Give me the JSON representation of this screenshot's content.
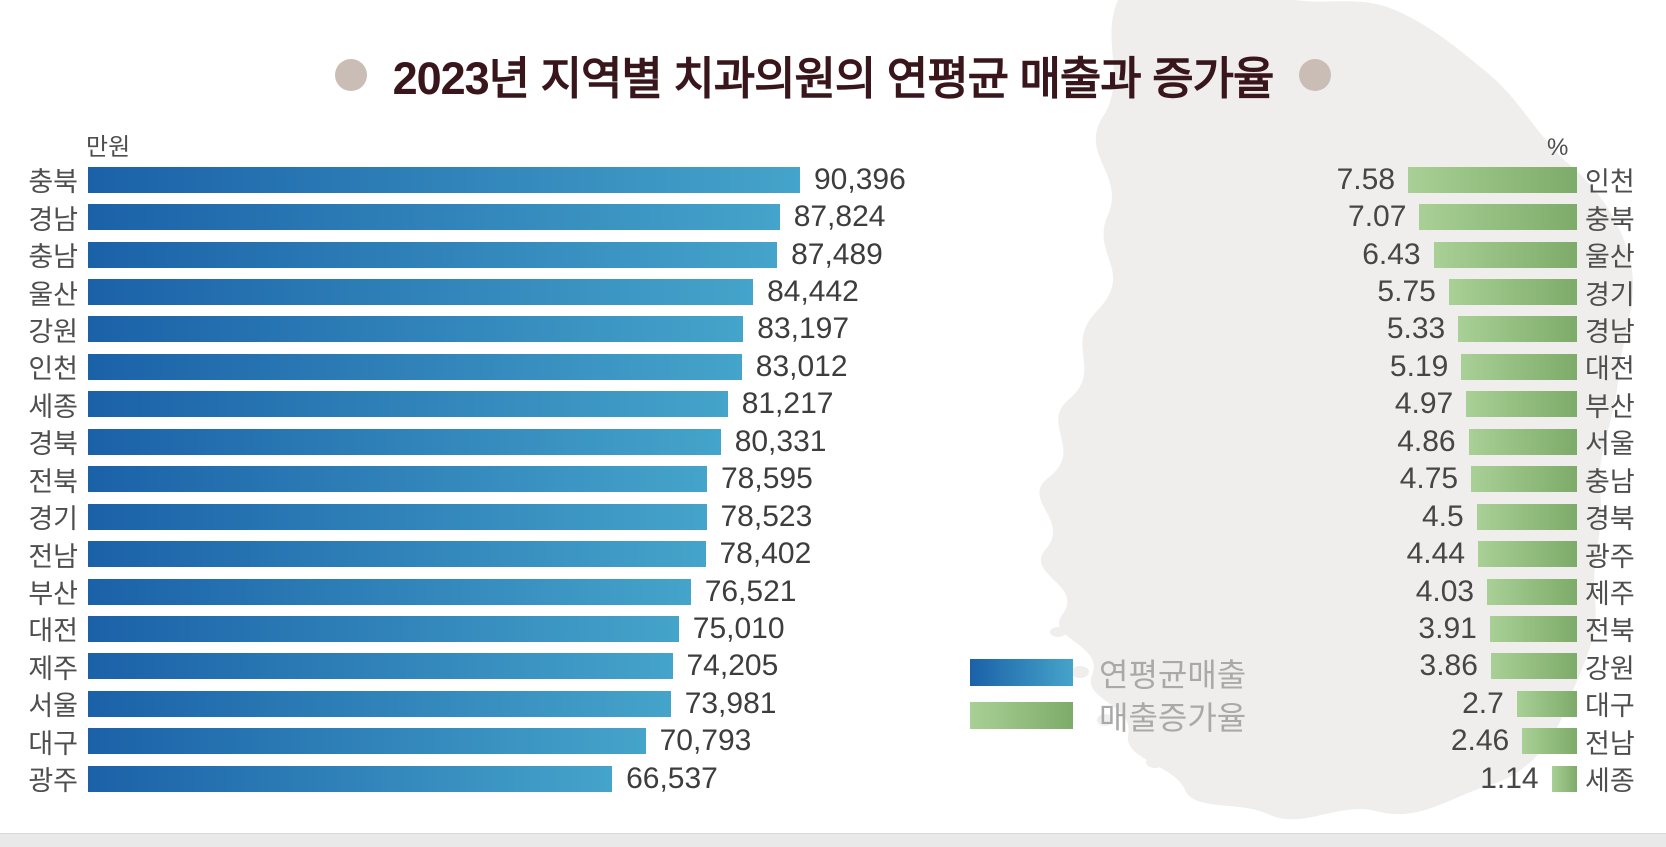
{
  "page": {
    "title": "2023년 지역별 치과의원의 연평균 매출과 증가율"
  },
  "legend": {
    "items": [
      {
        "label": "연평균매출",
        "color_start": "#1b61a8",
        "color_end": "#45a4ca"
      },
      {
        "label": "매출증가율",
        "color_start": "#a9d096",
        "color_end": "#7dab69"
      }
    ]
  },
  "colors": {
    "title_text": "#38161b",
    "title_dot": "#c9bdb6",
    "sales_bar_start": "#1b61a8",
    "sales_bar_end": "#45a4ca",
    "growth_bar_start": "#a9d096",
    "growth_bar_end": "#7dab69",
    "map_silhouette": "#efeeed",
    "value_text": "#3d3d3d",
    "category_text": "#4e4e4e",
    "legend_text": "#a9a9a9"
  },
  "chart_data": [
    {
      "type": "bar",
      "orientation": "horizontal-left-anchored",
      "name": "연평균매출",
      "unit": "만원",
      "categories": [
        "충북",
        "경남",
        "충남",
        "울산",
        "강원",
        "인천",
        "세종",
        "경북",
        "전북",
        "경기",
        "전남",
        "부산",
        "대전",
        "제주",
        "서울",
        "대구",
        "광주"
      ],
      "values": [
        90396,
        87824,
        87489,
        84442,
        83197,
        83012,
        81217,
        80331,
        78595,
        78523,
        78402,
        76521,
        75010,
        74205,
        73981,
        70793,
        66537
      ],
      "value_labels": [
        "90,396",
        "87,824",
        "87,489",
        "84,442",
        "83,197",
        "83,012",
        "81,217",
        "80,331",
        "78,595",
        "78,523",
        "78,402",
        "76,521",
        "75,010",
        "74,205",
        "73,981",
        "70,793",
        "66,537"
      ],
      "xlim": [
        0,
        90396
      ],
      "grid": false,
      "legend_position": "center-bottom"
    },
    {
      "type": "bar",
      "orientation": "horizontal-right-anchored",
      "name": "매출증가율",
      "unit": "%",
      "categories": [
        "인천",
        "충북",
        "울산",
        "경기",
        "경남",
        "대전",
        "부산",
        "서울",
        "충남",
        "경북",
        "광주",
        "제주",
        "전북",
        "강원",
        "대구",
        "전남",
        "세종"
      ],
      "values": [
        7.58,
        7.07,
        6.43,
        5.75,
        5.33,
        5.19,
        4.97,
        4.86,
        4.75,
        4.5,
        4.44,
        4.03,
        3.91,
        3.86,
        2.7,
        2.46,
        1.14
      ],
      "value_labels": [
        "7.58",
        "7.07",
        "6.43",
        "5.75",
        "5.33",
        "5.19",
        "4.97",
        "4.86",
        "4.75",
        "4.5",
        "4.44",
        "4.03",
        "3.91",
        "3.86",
        "2.7",
        "2.46",
        "1.14"
      ],
      "xlim": [
        0,
        7.58
      ],
      "grid": false
    }
  ]
}
